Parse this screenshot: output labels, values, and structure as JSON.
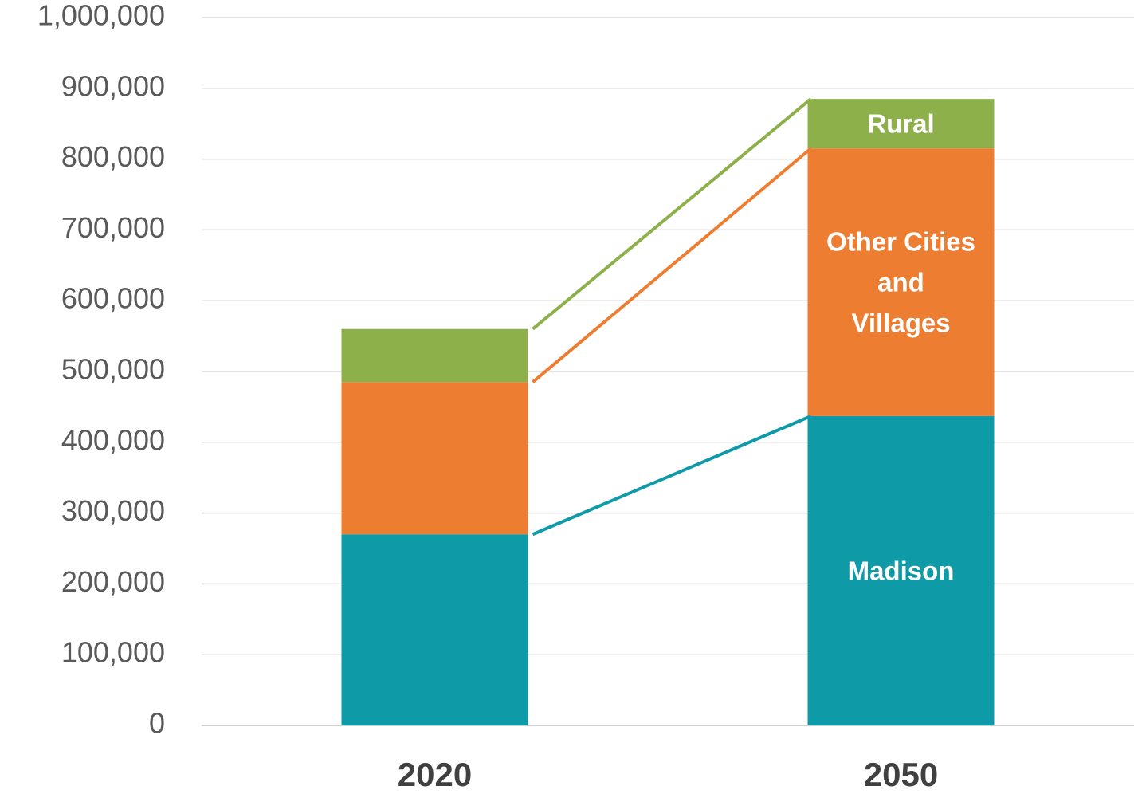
{
  "chart_data": {
    "type": "stacked_bar",
    "categories": [
      "2020",
      "2050"
    ],
    "series": [
      {
        "name": "Madison",
        "color": "#0e9aa7",
        "values": [
          270000,
          437000
        ]
      },
      {
        "name": "Other Cities and Villages",
        "color": "#ed7d31",
        "values": [
          215000,
          378000
        ]
      },
      {
        "name": "Rural",
        "color": "#8db04a",
        "values": [
          75000,
          70000
        ]
      }
    ],
    "ylim": [
      0,
      1000000
    ],
    "yticks": [
      0,
      {
        "value": 100000,
        "label": "100,000"
      },
      {
        "value": 200000,
        "label": "200,000"
      },
      {
        "value": 300000,
        "label": "300,000"
      },
      {
        "value": 400000,
        "label": "400,000"
      },
      {
        "value": 500000,
        "label": "500,000"
      },
      {
        "value": 600000,
        "label": "600,000"
      },
      {
        "value": 700000,
        "label": "700,000"
      },
      {
        "value": 800000,
        "label": "800,000"
      },
      {
        "value": 900000,
        "label": "900,000"
      },
      {
        "value": 1000000,
        "label": "1,000,000"
      }
    ],
    "grid": true
  }
}
